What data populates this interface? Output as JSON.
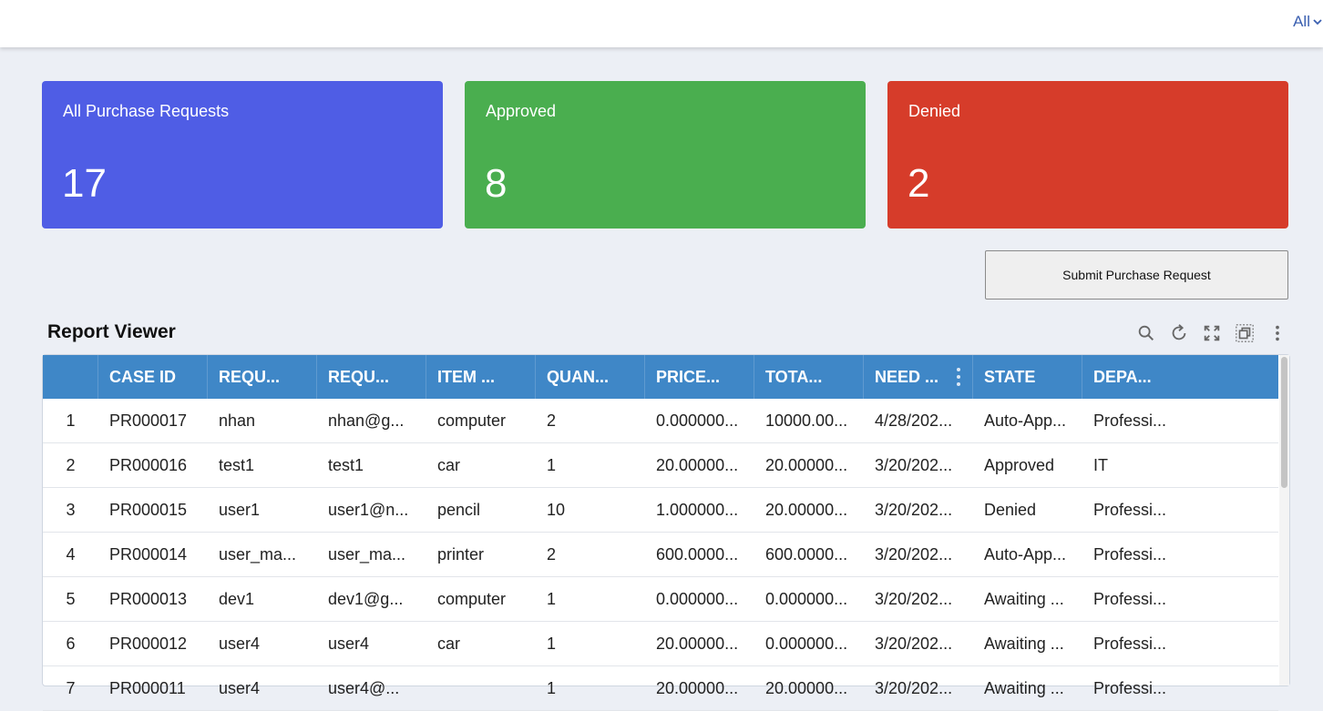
{
  "topbar": {
    "filter_label": "All"
  },
  "cards": {
    "all": {
      "label": "All Purchase Requests",
      "value": "17",
      "color": "#4f5de5"
    },
    "approved": {
      "label": "Approved",
      "value": "8",
      "color": "#4aae4f"
    },
    "denied": {
      "label": "Denied",
      "value": "2",
      "color": "#d63c2a"
    }
  },
  "actions": {
    "submit_label": "Submit Purchase Request"
  },
  "report": {
    "title": "Report Viewer",
    "tools": [
      "search-icon",
      "refresh-icon",
      "expand-icon",
      "restore-icon",
      "more-vertical-icon"
    ],
    "columns": [
      "",
      "CASE ID",
      "REQU...",
      "REQU...",
      "ITEM ...",
      "QUAN...",
      "PRICE...",
      "TOTA...",
      "NEED ...",
      "STATE",
      "DEPA..."
    ],
    "rows": [
      [
        "1",
        "PR000017",
        "nhan",
        "nhan@g...",
        "computer",
        "2",
        "0.000000...",
        "10000.00...",
        "4/28/202...",
        "Auto-App...",
        "Professi..."
      ],
      [
        "2",
        "PR000016",
        "test1",
        "test1",
        "car",
        "1",
        "20.00000...",
        "20.00000...",
        "3/20/202...",
        "Approved",
        "IT"
      ],
      [
        "3",
        "PR000015",
        "user1",
        "user1@n...",
        "pencil",
        "10",
        "1.000000...",
        "20.00000...",
        "3/20/202...",
        "Denied",
        "Professi..."
      ],
      [
        "4",
        "PR000014",
        "user_ma...",
        "user_ma...",
        "printer",
        "2",
        "600.0000...",
        "600.0000...",
        "3/20/202...",
        "Auto-App...",
        "Professi..."
      ],
      [
        "5",
        "PR000013",
        "dev1",
        "dev1@g...",
        "computer",
        "1",
        "0.000000...",
        "0.000000...",
        "3/20/202...",
        "Awaiting ...",
        "Professi..."
      ],
      [
        "6",
        "PR000012",
        "user4",
        "user4",
        "car",
        "1",
        "20.00000...",
        "0.000000...",
        "3/20/202...",
        "Awaiting ...",
        "Professi..."
      ],
      [
        "7",
        "PR000011",
        "user4",
        "user4@...",
        "",
        "1",
        "20.00000...",
        "20.00000...",
        "3/20/202...",
        "Awaiting ...",
        "Professi..."
      ]
    ]
  }
}
